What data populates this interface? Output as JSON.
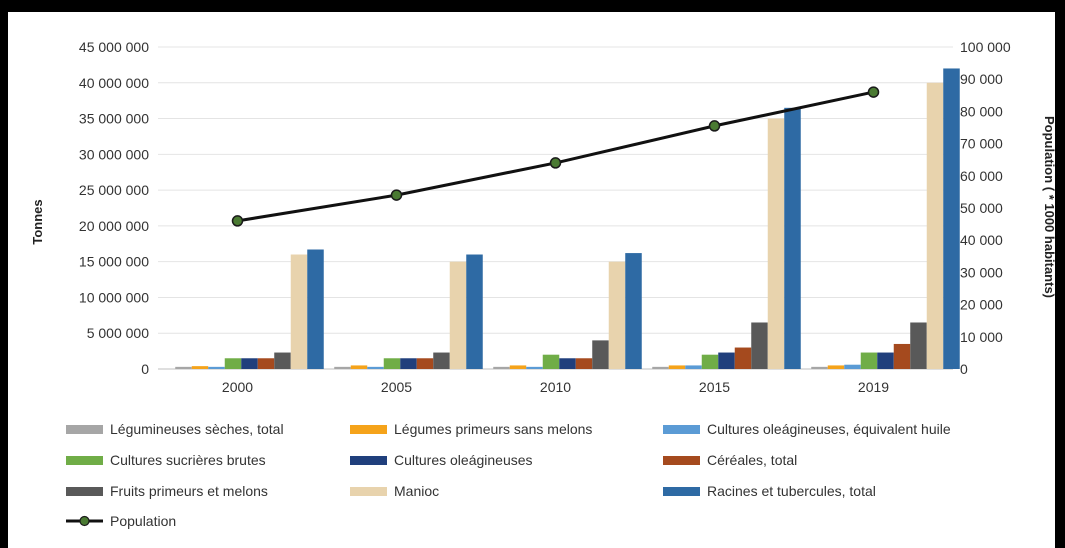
{
  "chart_data": {
    "type": "bar",
    "title": "",
    "ylabel": "Tonnes",
    "y2label": "Population ( * 1000 habitants)",
    "ylim": [
      0,
      45000000
    ],
    "y2lim": [
      0,
      100000
    ],
    "y_ticks": [
      0,
      5000000,
      10000000,
      15000000,
      20000000,
      25000000,
      30000000,
      35000000,
      40000000,
      45000000
    ],
    "y_tick_labels": [
      "0",
      "5 000 000",
      "10 000 000",
      "15 000 000",
      "20 000 000",
      "25 000 000",
      "30 000 000",
      "35 000 000",
      "40 000 000",
      "45 000 000"
    ],
    "y2_ticks": [
      0,
      10000,
      20000,
      30000,
      40000,
      50000,
      60000,
      70000,
      80000,
      90000,
      100000
    ],
    "y2_tick_labels": [
      "0",
      "10 000",
      "20 000",
      "30 000",
      "40 000",
      "50 000",
      "60 000",
      "70 000",
      "80 000",
      "90 000",
      "100 000"
    ],
    "categories": [
      "2000",
      "2005",
      "2010",
      "2015",
      "2019"
    ],
    "grid": true,
    "legend_position": "bottom",
    "series": [
      {
        "name": "Légumineuses sèches, total",
        "color": "#a6a6a6",
        "values": [
          300000,
          300000,
          300000,
          300000,
          300000
        ]
      },
      {
        "name": "Légumes primeurs sans melons",
        "color": "#f5a31a",
        "values": [
          400000,
          500000,
          500000,
          500000,
          500000
        ]
      },
      {
        "name": "Cultures oleágineuses, équivalent huile",
        "color": "#5b9bd5",
        "values": [
          300000,
          300000,
          300000,
          500000,
          600000
        ]
      },
      {
        "name": "Cultures sucrières brutes",
        "color": "#70ad47",
        "values": [
          1500000,
          1500000,
          2000000,
          2000000,
          2300000
        ]
      },
      {
        "name": "Cultures oleágineuses",
        "color": "#203f7c",
        "values": [
          1500000,
          1500000,
          1500000,
          2300000,
          2300000
        ]
      },
      {
        "name": "Céréales, total",
        "color": "#a54a1e",
        "values": [
          1500000,
          1500000,
          1500000,
          3000000,
          3500000
        ]
      },
      {
        "name": "Fruits primeurs et melons",
        "color": "#595959",
        "values": [
          2300000,
          2300000,
          4000000,
          6500000,
          6500000
        ]
      },
      {
        "name": "Manioc",
        "color": "#e8d3ad",
        "values": [
          16000000,
          15000000,
          15000000,
          35000000,
          40000000
        ]
      },
      {
        "name": "Racines et tubercules, total",
        "color": "#2e6aa4",
        "values": [
          16700000,
          16000000,
          16200000,
          36500000,
          42000000
        ]
      }
    ],
    "line_series": {
      "name": "Population",
      "axis": "right",
      "color": "#111111",
      "marker_color": "#4a7a32",
      "values": [
        46000,
        54000,
        64000,
        75500,
        86000
      ]
    }
  }
}
